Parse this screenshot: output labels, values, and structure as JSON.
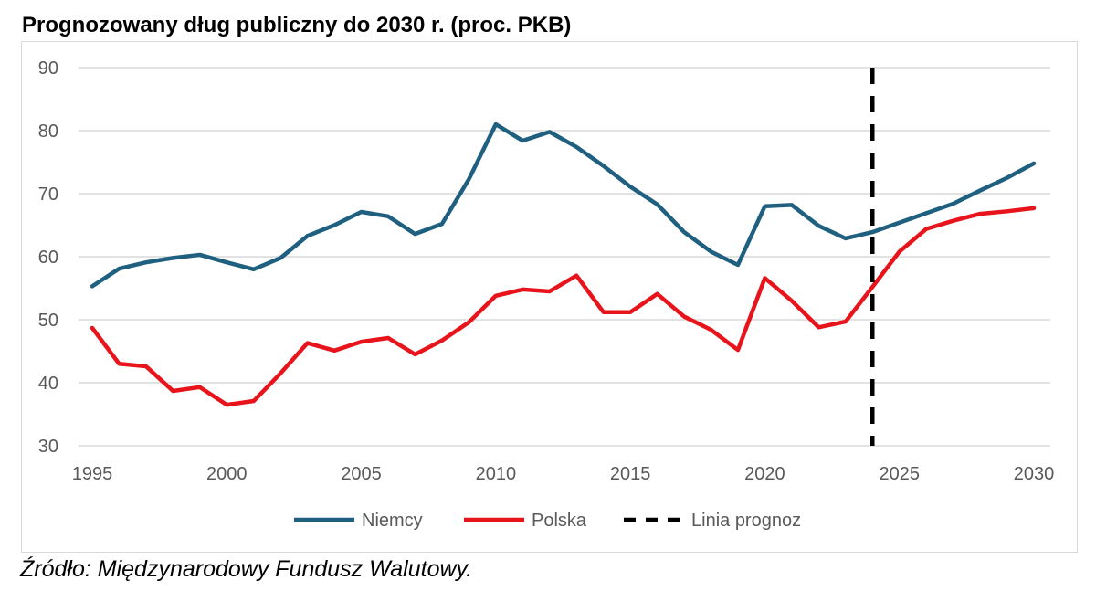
{
  "chart_data": {
    "type": "line",
    "title": "Prognozowany dług publiczny do 2030 r. (proc. PKB)",
    "source": "Źródło: Międzynarodowy Fundusz Walutowy.",
    "x": [
      1995,
      1996,
      1997,
      1998,
      1999,
      2000,
      2001,
      2002,
      2003,
      2004,
      2005,
      2006,
      2007,
      2008,
      2009,
      2010,
      2011,
      2012,
      2013,
      2014,
      2015,
      2016,
      2017,
      2018,
      2019,
      2020,
      2021,
      2022,
      2023,
      2024,
      2025,
      2026,
      2027,
      2028,
      2029,
      2030
    ],
    "x_ticks": [
      "1995",
      "2000",
      "2005",
      "2010",
      "2015",
      "2020",
      "2025",
      "2030"
    ],
    "xlim": [
      1995,
      2030
    ],
    "y_ticks": [
      "30",
      "40",
      "50",
      "60",
      "70",
      "80",
      "90"
    ],
    "ylim": [
      30,
      90
    ],
    "grid": "horizontal",
    "legend_position": "bottom",
    "series": [
      {
        "name": "Niemcy",
        "color": "#1f5f7f",
        "values": [
          55.3,
          58.1,
          59.1,
          59.8,
          60.3,
          59.1,
          58.0,
          59.8,
          63.3,
          65.0,
          67.1,
          66.4,
          63.6,
          65.2,
          72.3,
          81.0,
          78.4,
          79.8,
          77.4,
          74.4,
          71.1,
          68.3,
          63.9,
          60.8,
          58.7,
          68.0,
          68.2,
          64.9,
          62.9,
          63.9,
          65.4,
          66.9,
          68.4,
          70.5,
          72.5,
          74.8
        ]
      },
      {
        "name": "Polska",
        "color": "#e8141b",
        "values": [
          48.7,
          43.0,
          42.6,
          38.7,
          39.3,
          36.5,
          37.1,
          41.5,
          46.3,
          45.1,
          46.5,
          47.1,
          44.5,
          46.7,
          49.6,
          53.8,
          54.8,
          54.5,
          57.0,
          51.2,
          51.2,
          54.1,
          50.5,
          48.4,
          45.2,
          56.6,
          53.0,
          48.8,
          49.7,
          55.2,
          60.8,
          64.4,
          65.7,
          66.8,
          67.2,
          67.7
        ]
      }
    ],
    "forecast_line": {
      "name": "Linia prognoz",
      "x": 2024,
      "color": "#000000"
    }
  }
}
